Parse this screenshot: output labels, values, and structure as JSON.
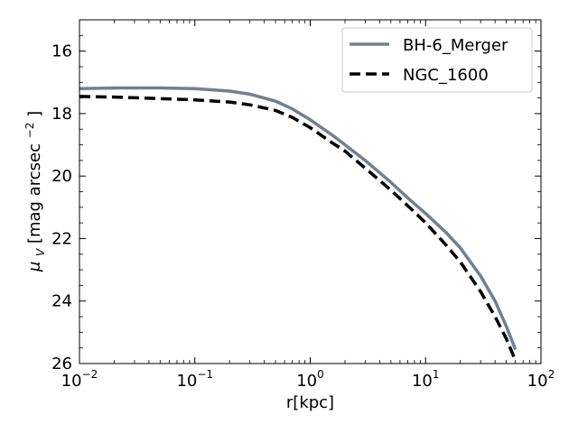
{
  "chart_data": {
    "type": "line",
    "title": "",
    "xlabel": "r[kpc]",
    "ylabel_main": "μ",
    "ylabel_sub": "V",
    "ylabel_rest": "[mag arcsec",
    "ylabel_sup": "−2",
    "ylabel_end": "]",
    "x_scale": "log",
    "xlim": [
      0.01,
      100
    ],
    "ylim": [
      26,
      15
    ],
    "y_inverted": true,
    "x_tick_bases": [
      "10",
      "10",
      "10",
      "10",
      "10"
    ],
    "x_tick_exps": [
      "−2",
      "−1",
      "0",
      "1",
      "2"
    ],
    "x_tick_values": [
      0.01,
      0.1,
      1,
      10,
      100
    ],
    "y_tick_values": [
      16,
      18,
      20,
      22,
      24,
      26
    ],
    "y_tick_labels": [
      "16",
      "18",
      "20",
      "22",
      "24",
      "26"
    ],
    "grid": false,
    "legend_position": "top-right",
    "series": [
      {
        "name": "BH-6_Merger",
        "color": "#708090",
        "style": "solid",
        "x": [
          0.01,
          0.02,
          0.05,
          0.1,
          0.2,
          0.3,
          0.5,
          0.7,
          1,
          1.5,
          2,
          3,
          5,
          7,
          10,
          15,
          20,
          30,
          40,
          50,
          60
        ],
        "y": [
          17.2,
          17.18,
          17.18,
          17.2,
          17.28,
          17.38,
          17.6,
          17.85,
          18.2,
          18.65,
          19.0,
          19.5,
          20.2,
          20.7,
          21.2,
          21.8,
          22.3,
          23.2,
          24.0,
          24.8,
          25.55
        ]
      },
      {
        "name": "NGC_1600",
        "color": "#000000",
        "style": "dashed",
        "x": [
          0.01,
          0.02,
          0.05,
          0.1,
          0.2,
          0.3,
          0.5,
          0.7,
          1,
          1.5,
          2,
          3,
          5,
          7,
          10,
          15,
          20,
          30,
          40,
          50,
          60
        ],
        "y": [
          17.45,
          17.47,
          17.52,
          17.56,
          17.63,
          17.72,
          17.9,
          18.12,
          18.45,
          18.9,
          19.2,
          19.75,
          20.45,
          20.95,
          21.5,
          22.2,
          22.75,
          23.7,
          24.5,
          25.2,
          25.9
        ]
      }
    ]
  }
}
